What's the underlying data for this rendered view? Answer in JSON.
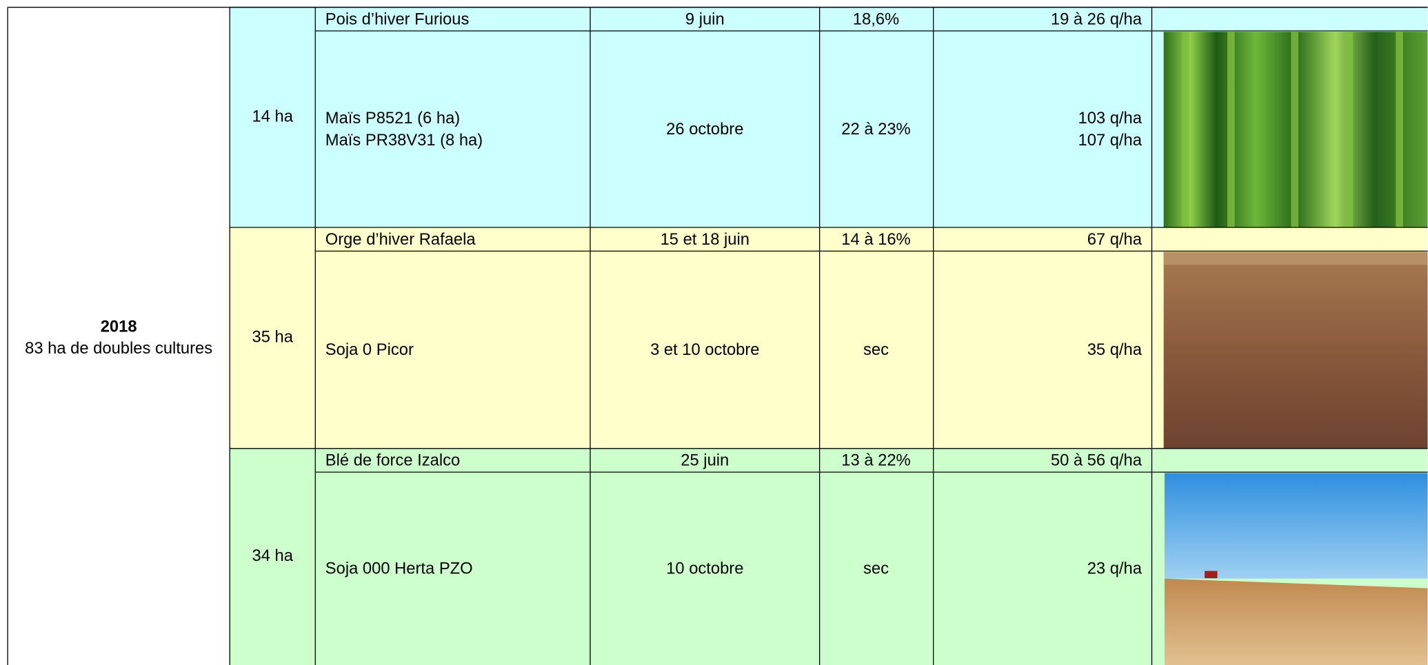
{
  "summary": {
    "year": "2018",
    "caption": "83 ha de doubles cultures"
  },
  "groups": [
    {
      "area": "14 ha",
      "rows": [
        {
          "crop": [
            "Pois d’hiver Furious"
          ],
          "date": "9 juin",
          "humidity": "18,6%",
          "yield": [
            "19 à 26 q/ha"
          ]
        },
        {
          "crop": [
            "Maïs P8521 (6 ha)",
            "Maïs PR38V31 (8 ha)"
          ],
          "date": "26 octobre",
          "humidity": "22 à 23%",
          "yield": [
            "103 q/ha",
            "107 q/ha"
          ]
        }
      ]
    },
    {
      "area": "35 ha",
      "rows": [
        {
          "crop": [
            "Orge d’hiver Rafaela"
          ],
          "date": "15 et 18 juin",
          "humidity": "14 à 16%",
          "yield": [
            "67 q/ha"
          ]
        },
        {
          "crop": [
            "Soja 0 Picor"
          ],
          "date": "3 et 10 octobre",
          "humidity": "sec",
          "yield": [
            "35 q/ha"
          ]
        }
      ]
    },
    {
      "area": "34 ha",
      "rows": [
        {
          "crop": [
            "Blé de force Izalco"
          ],
          "date": "25 juin",
          "humidity": "13 à 22%",
          "yield": [
            "50 à 56 q/ha"
          ]
        },
        {
          "crop": [
            "Soja 000 Herta PZO"
          ],
          "date": "10 octobre",
          "humidity": "sec",
          "yield": [
            "23 q/ha"
          ]
        }
      ]
    }
  ]
}
